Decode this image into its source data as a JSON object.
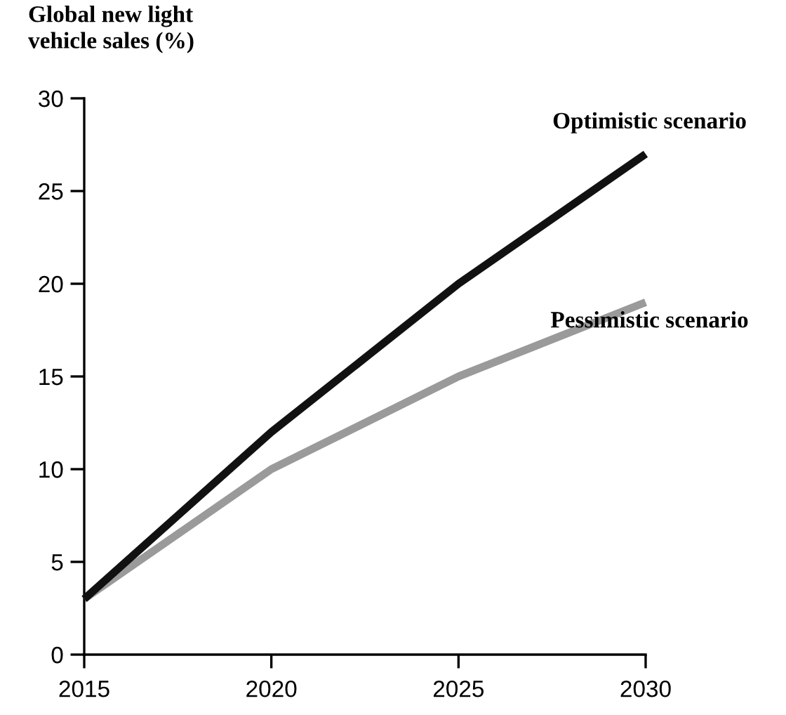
{
  "chart_data": {
    "type": "line",
    "ylabel": "Global new light\nvehicle sales (%)",
    "x": [
      2015,
      2020,
      2025,
      2030
    ],
    "series": [
      {
        "name": "Optimistic scenario",
        "color": "#111111",
        "values": [
          3,
          12,
          20,
          27
        ]
      },
      {
        "name": "Pessimistic scenario",
        "color": "#9a9a9a",
        "values": [
          3,
          10,
          15,
          19
        ]
      }
    ],
    "xlim": [
      2015,
      2030
    ],
    "xticks": [
      2015,
      2020,
      2025,
      2030
    ],
    "ylim": [
      0,
      30
    ],
    "yticks": [
      0,
      5,
      10,
      15,
      20,
      25,
      30
    ],
    "grid": false,
    "legend": false,
    "marker": "none",
    "line_style": "solid"
  }
}
